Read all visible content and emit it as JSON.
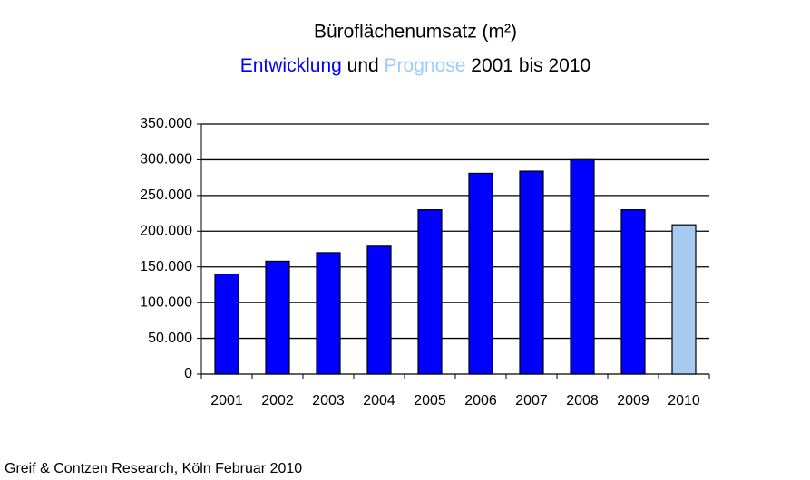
{
  "chart_data": {
    "type": "bar",
    "title": "Büroflächenumsatz (m²)",
    "subtitle": [
      {
        "text": "Entwicklung",
        "color": "#0000ff"
      },
      {
        "text": " und ",
        "color": "#000000"
      },
      {
        "text": "Prognose",
        "color": "#99ccff"
      },
      {
        "text": " 2001 bis 2010",
        "color": "#000000"
      }
    ],
    "categories": [
      "2001",
      "2002",
      "2003",
      "2004",
      "2005",
      "2006",
      "2007",
      "2008",
      "2009",
      "2010"
    ],
    "values": [
      140000,
      158000,
      170000,
      179000,
      230000,
      281000,
      284000,
      300000,
      230000,
      209000
    ],
    "colors": [
      "#0000ff",
      "#0000ff",
      "#0000ff",
      "#0000ff",
      "#0000ff",
      "#0000ff",
      "#0000ff",
      "#0000ff",
      "#0000ff",
      "#a6caf0"
    ],
    "ylim": [
      0,
      350000
    ],
    "yticks": [
      0,
      {
        "value": 50000,
        "label": "50.000"
      },
      {
        "value": 100000,
        "label": "100.000"
      },
      {
        "value": 150000,
        "label": "150.000"
      },
      {
        "value": 200000,
        "label": "200.000"
      },
      {
        "value": 250000,
        "label": "250.000"
      },
      {
        "value": 300000,
        "label": "300.000"
      },
      {
        "value": 350000,
        "label": "350.000"
      }
    ],
    "grid": true,
    "source": "Greif & Contzen Research, Köln Februar 2010"
  }
}
